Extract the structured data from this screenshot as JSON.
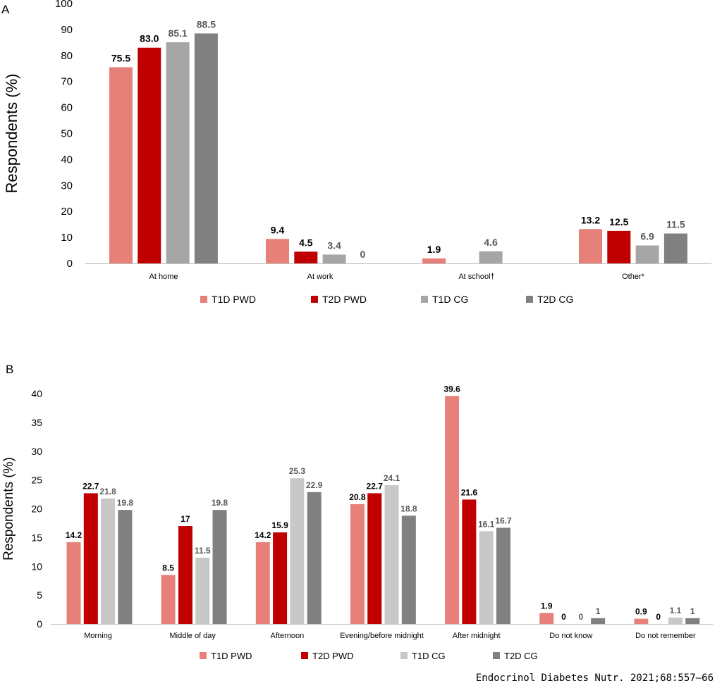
{
  "colors": {
    "t1d_pwd": "#e8807a",
    "t2d_pwd": "#c00000",
    "t1d_cg_a": "#a6a6a6",
    "t1d_cg_b": "#c8c8c8",
    "t2d_cg": "#808080",
    "axis": "#bfbfbf",
    "label_dark": "#000000",
    "label_gray": "#595959"
  },
  "citation": "Endocrinol Diabetes Nutr. 2021;68:557–66",
  "chart_data": [
    {
      "panel": "A",
      "type": "bar",
      "title": "",
      "xlabel": "",
      "ylabel": "Respondents (%)",
      "ylim": [
        0,
        100
      ],
      "yticks": [
        0,
        10,
        20,
        30,
        40,
        50,
        60,
        70,
        80,
        90,
        100
      ],
      "categories": [
        "At home",
        "At work",
        "At school†",
        "Other*"
      ],
      "series": [
        {
          "name": "T1D PWD",
          "color": "#e8807a",
          "values": [
            75.5,
            9.4,
            1.9,
            13.2
          ],
          "labels": [
            "75.5",
            "9.4",
            "1.9",
            "13.2"
          ],
          "label_color": "#000000"
        },
        {
          "name": "T2D PWD",
          "color": "#c00000",
          "values": [
            83.0,
            4.5,
            null,
            12.5
          ],
          "labels": [
            "83.0",
            "4.5",
            "",
            "12.5"
          ],
          "label_color": "#000000"
        },
        {
          "name": "T1D CG",
          "color": "#a6a6a6",
          "values": [
            85.1,
            3.4,
            4.6,
            6.9
          ],
          "labels": [
            "85.1",
            "3.4",
            "4.6",
            "6.9"
          ],
          "label_color": "#595959"
        },
        {
          "name": "T2D CG",
          "color": "#808080",
          "values": [
            88.5,
            0,
            null,
            11.5
          ],
          "labels": [
            "88.5",
            "0",
            "",
            "11.5"
          ],
          "label_color": "#595959"
        }
      ],
      "legend_position": "bottom"
    },
    {
      "panel": "B",
      "type": "bar",
      "title": "",
      "xlabel": "",
      "ylabel": "Respondents (%)",
      "ylim": [
        0,
        40
      ],
      "yticks": [
        0,
        5,
        10,
        15,
        20,
        25,
        30,
        35,
        40
      ],
      "categories": [
        "Morning",
        "Middle of day",
        "Afternoon",
        "Evening/before midnight",
        "After midnight",
        "Do not know",
        "Do not remember"
      ],
      "series": [
        {
          "name": "T1D PWD",
          "color": "#e8807a",
          "values": [
            14.2,
            8.5,
            14.2,
            20.8,
            39.6,
            1.9,
            0.9
          ],
          "labels": [
            "14.2",
            "8.5",
            "14.2",
            "20.8",
            "39.6",
            "1.9",
            "0.9"
          ],
          "label_color": "#000000"
        },
        {
          "name": "T2D PWD",
          "color": "#c00000",
          "values": [
            22.7,
            17,
            15.9,
            22.7,
            21.6,
            0,
            0
          ],
          "labels": [
            "22.7",
            "17",
            "15.9",
            "22.7",
            "21.6",
            "0",
            "0"
          ],
          "label_color": "#000000"
        },
        {
          "name": "T1D CG",
          "color": "#c8c8c8",
          "values": [
            21.8,
            11.5,
            25.3,
            24.1,
            16.1,
            0,
            1.1
          ],
          "labels": [
            "21.8",
            "11.5",
            "25.3",
            "24.1",
            "16.1",
            "0",
            "1.1"
          ],
          "label_color": "#595959"
        },
        {
          "name": "T2D CG",
          "color": "#808080",
          "values": [
            19.8,
            19.8,
            22.9,
            18.8,
            16.7,
            1,
            1
          ],
          "labels": [
            "19.8",
            "19.8",
            "22.9",
            "18.8",
            "16.7",
            "1",
            "1"
          ],
          "label_color": "#595959"
        }
      ],
      "legend_position": "bottom"
    }
  ]
}
